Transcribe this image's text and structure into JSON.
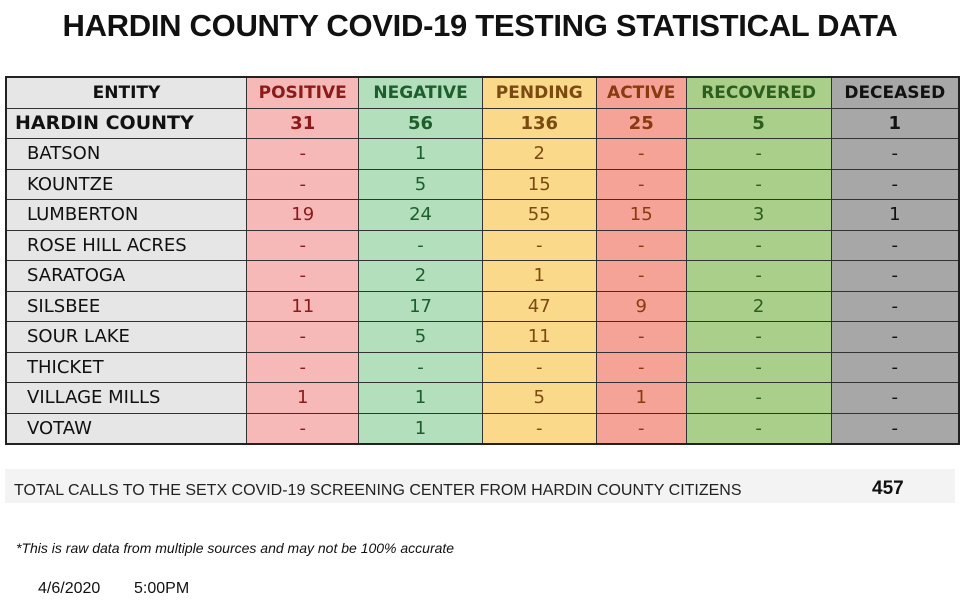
{
  "title": "HARDIN COUNTY COVID-19 TESTING STATISTICAL DATA",
  "headers": [
    "ENTITY",
    "POSITIVE",
    "NEGATIVE",
    "PENDING",
    "ACTIVE",
    "RECOVERED",
    "DECEASED"
  ],
  "rows": [
    [
      "HARDIN COUNTY",
      "31",
      "56",
      "136",
      "25",
      "5",
      "1"
    ],
    [
      "BATSON",
      "-",
      "1",
      "2",
      "-",
      "-",
      "-"
    ],
    [
      "KOUNTZE",
      "-",
      "5",
      "15",
      "-",
      "-",
      "-"
    ],
    [
      "LUMBERTON",
      "19",
      "24",
      "55",
      "15",
      "3",
      "1"
    ],
    [
      "ROSE HILL ACRES",
      "-",
      "-",
      "-",
      "-",
      "-",
      "-"
    ],
    [
      "SARATOGA",
      "-",
      "2",
      "1",
      "-",
      "-",
      "-"
    ],
    [
      "SILSBEE",
      "11",
      "17",
      "47",
      "9",
      "2",
      "-"
    ],
    [
      "SOUR LAKE",
      "-",
      "5",
      "11",
      "-",
      "-",
      "-"
    ],
    [
      "THICKET",
      "-",
      "-",
      "-",
      "-",
      "-",
      "-"
    ],
    [
      "VILLAGE MILLS",
      "1",
      "1",
      "5",
      "1",
      "-",
      "-"
    ],
    [
      "VOTAW",
      "-",
      "1",
      "-",
      "-",
      "-",
      "-"
    ]
  ],
  "total_label": "TOTAL CALLS TO THE SETX COVID-19 SCREENING CENTER FROM HARDIN COUNTY CITIZENS",
  "total_value": "457",
  "note": "*This is raw data from multiple sources and may not be 100% accurate",
  "date": "4/6/2020",
  "time": "5:00PM"
}
